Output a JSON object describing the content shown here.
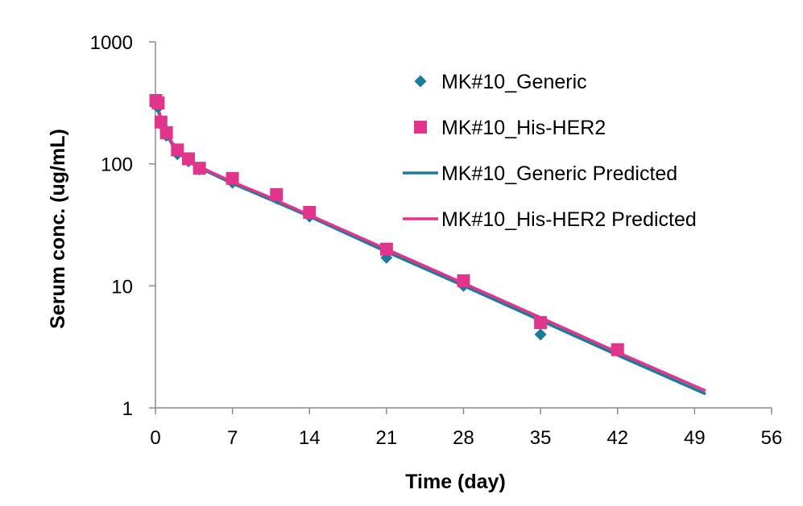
{
  "chart_data": {
    "type": "scatter",
    "title": "",
    "xlabel": "Time (day)",
    "ylabel": "Serum conc. (ug/mL)",
    "xlim": [
      0,
      56
    ],
    "ylim": [
      1,
      1000
    ],
    "y_scale": "log",
    "grid": false,
    "legend_position": "top-right",
    "x_ticks": [
      "0",
      "7",
      "14",
      "21",
      "28",
      "35",
      "42",
      "49",
      "56"
    ],
    "y_ticks": [
      "1",
      "10",
      "100",
      "1000"
    ],
    "series": [
      {
        "name": "MK#10_Generic",
        "kind": "points",
        "marker": "diamond",
        "color": "#1B7B9C",
        "x": [
          0.04,
          0.25,
          0.5,
          1,
          2,
          3,
          4,
          7,
          11,
          14,
          21,
          28,
          35
        ],
        "y": [
          300,
          290,
          210,
          170,
          120,
          105,
          90,
          70,
          52,
          37,
          17,
          10,
          4
        ]
      },
      {
        "name": "MK#10_His-HER2",
        "kind": "points",
        "marker": "square",
        "color": "#E0358B",
        "x": [
          0.04,
          0.25,
          0.5,
          1,
          2,
          3,
          4,
          7,
          11,
          14,
          21,
          28,
          35,
          42
        ],
        "y": [
          330,
          315,
          220,
          180,
          130,
          110,
          92,
          76,
          56,
          40,
          20,
          11,
          5,
          3
        ]
      },
      {
        "name": "MK#10_Generic Predicted",
        "kind": "line",
        "color": "#1B7B9C",
        "x": [
          0,
          0.5,
          1,
          1.5,
          2,
          3,
          4,
          5,
          7,
          10,
          14,
          21,
          28,
          35,
          42,
          50
        ],
        "y": [
          320,
          230,
          175,
          145,
          125,
          105,
          92,
          84,
          69,
          53,
          37,
          19,
          10,
          5.2,
          2.7,
          1.3
        ]
      },
      {
        "name": "MK#10_His-HER2 Predicted",
        "kind": "line",
        "color": "#E0358B",
        "x": [
          0,
          0.5,
          1,
          1.5,
          2,
          3,
          4,
          5,
          7,
          10,
          14,
          21,
          28,
          35,
          42,
          50
        ],
        "y": [
          330,
          240,
          182,
          150,
          130,
          108,
          95,
          86,
          71,
          55,
          38,
          20,
          10.5,
          5.5,
          2.85,
          1.38
        ]
      }
    ]
  }
}
